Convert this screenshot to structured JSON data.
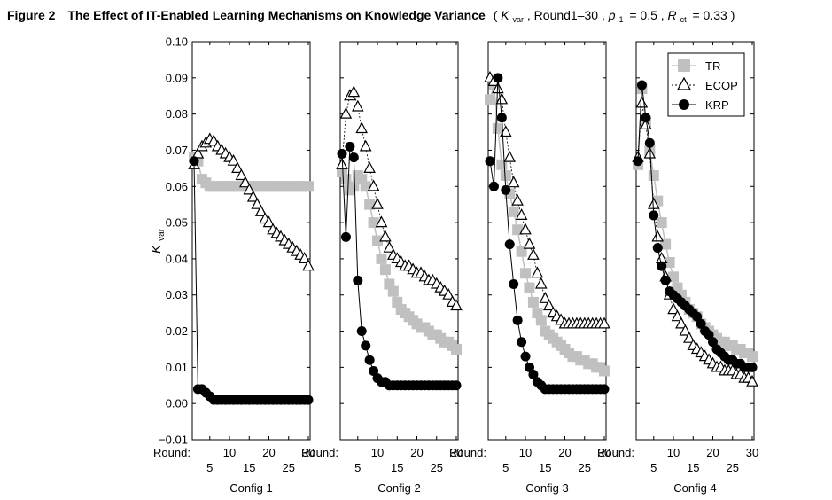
{
  "figure": {
    "label": "Figure 2",
    "title": "The Effect of IT-Enabled Learning Mechanisms on Knowledge Variance",
    "params": {
      "k_main": "K",
      "k_sub": "var",
      "rounds": "Round1–30",
      "p_main": "p",
      "p_sub": "1",
      "p_value": "= 0.5",
      "r_main": "R",
      "r_sub": "ct",
      "r_value": "= 0.33"
    }
  },
  "y_axis": {
    "label_main": "K",
    "label_sub": "var",
    "ticks": [
      "0.10",
      "0.09",
      "0.08",
      "0.07",
      "0.06",
      "0.05",
      "0.04",
      "0.03",
      "0.02",
      "0.01",
      "0.00",
      "−0.01"
    ]
  },
  "x_axis": {
    "round_label": "Round:",
    "top_ticks": [
      "10",
      "20",
      "30"
    ],
    "bottom_ticks": [
      "5",
      "15",
      "25"
    ]
  },
  "legend": {
    "placement": "top-right of Config 4 panel",
    "entries": [
      {
        "key": "tr",
        "label": "TR"
      },
      {
        "key": "ecop",
        "label": "ECOP"
      },
      {
        "key": "krp",
        "label": "KRP"
      }
    ]
  },
  "chart_data": {
    "type": "line",
    "layout": "four small-multiple panels sharing a y-axis",
    "xlabel": "Round",
    "ylabel": "K_var",
    "xlim": [
      1,
      30
    ],
    "ylim": [
      -0.01,
      0.1
    ],
    "x": [
      1,
      2,
      3,
      4,
      5,
      6,
      7,
      8,
      9,
      10,
      11,
      12,
      13,
      14,
      15,
      16,
      17,
      18,
      19,
      20,
      21,
      22,
      23,
      24,
      25,
      26,
      27,
      28,
      29,
      30
    ],
    "grid": false,
    "colors": {
      "TR": "#c0c0c0",
      "ECOP": "#000000",
      "KRP": "#000000"
    },
    "panels": [
      {
        "name": "Config 1",
        "series": [
          {
            "name": "TR",
            "values": [
              0.068,
              0.067,
              0.062,
              0.061,
              0.06,
              0.06,
              0.06,
              0.06,
              0.06,
              0.06,
              0.06,
              0.06,
              0.06,
              0.06,
              0.06,
              0.06,
              0.06,
              0.06,
              0.06,
              0.06,
              0.06,
              0.06,
              0.06,
              0.06,
              0.06,
              0.06,
              0.06,
              0.06,
              0.06,
              0.06
            ]
          },
          {
            "name": "ECOP",
            "values": [
              0.066,
              0.069,
              0.071,
              0.072,
              0.073,
              0.0725,
              0.071,
              0.07,
              0.069,
              0.068,
              0.067,
              0.065,
              0.063,
              0.061,
              0.059,
              0.057,
              0.055,
              0.053,
              0.051,
              0.05,
              0.048,
              0.047,
              0.046,
              0.045,
              0.044,
              0.043,
              0.042,
              0.041,
              0.04,
              0.038
            ]
          },
          {
            "name": "KRP",
            "values": [
              0.067,
              0.004,
              0.004,
              0.003,
              0.002,
              0.001,
              0.001,
              0.001,
              0.001,
              0.001,
              0.001,
              0.001,
              0.001,
              0.001,
              0.001,
              0.001,
              0.001,
              0.001,
              0.001,
              0.001,
              0.001,
              0.001,
              0.001,
              0.001,
              0.001,
              0.001,
              0.001,
              0.001,
              0.001,
              0.001
            ]
          }
        ]
      },
      {
        "name": "Config 2",
        "series": [
          {
            "name": "TR",
            "values": [
              0.064,
              0.062,
              0.059,
              0.06,
              0.063,
              0.062,
              0.06,
              0.055,
              0.05,
              0.045,
              0.04,
              0.037,
              0.033,
              0.031,
              0.028,
              0.026,
              0.025,
              0.024,
              0.023,
              0.022,
              0.021,
              0.021,
              0.02,
              0.019,
              0.019,
              0.018,
              0.017,
              0.017,
              0.016,
              0.015
            ]
          },
          {
            "name": "ECOP",
            "values": [
              0.066,
              0.08,
              0.085,
              0.086,
              0.082,
              0.076,
              0.071,
              0.065,
              0.06,
              0.055,
              0.05,
              0.046,
              0.043,
              0.041,
              0.04,
              0.039,
              0.038,
              0.038,
              0.037,
              0.036,
              0.036,
              0.035,
              0.034,
              0.034,
              0.033,
              0.032,
              0.031,
              0.03,
              0.028,
              0.027
            ]
          },
          {
            "name": "KRP",
            "values": [
              0.069,
              0.046,
              0.071,
              0.068,
              0.034,
              0.02,
              0.016,
              0.012,
              0.009,
              0.007,
              0.006,
              0.006,
              0.005,
              0.005,
              0.005,
              0.005,
              0.005,
              0.005,
              0.005,
              0.005,
              0.005,
              0.005,
              0.005,
              0.005,
              0.005,
              0.005,
              0.005,
              0.005,
              0.005,
              0.005
            ]
          }
        ]
      },
      {
        "name": "Config 3",
        "series": [
          {
            "name": "TR",
            "values": [
              0.084,
              0.088,
              0.076,
              0.066,
              0.063,
              0.058,
              0.053,
              0.048,
              0.042,
              0.036,
              0.032,
              0.028,
              0.025,
              0.023,
              0.02,
              0.019,
              0.018,
              0.017,
              0.016,
              0.015,
              0.014,
              0.013,
              0.013,
              0.012,
              0.012,
              0.011,
              0.011,
              0.01,
              0.01,
              0.009
            ]
          },
          {
            "name": "ECOP",
            "values": [
              0.09,
              0.089,
              0.087,
              0.084,
              0.075,
              0.068,
              0.061,
              0.056,
              0.052,
              0.048,
              0.044,
              0.041,
              0.036,
              0.033,
              0.029,
              0.027,
              0.025,
              0.024,
              0.023,
              0.022,
              0.022,
              0.022,
              0.022,
              0.022,
              0.022,
              0.022,
              0.022,
              0.022,
              0.022,
              0.022
            ]
          },
          {
            "name": "KRP",
            "values": [
              0.067,
              0.06,
              0.09,
              0.079,
              0.059,
              0.044,
              0.033,
              0.023,
              0.017,
              0.013,
              0.01,
              0.008,
              0.006,
              0.005,
              0.004,
              0.004,
              0.004,
              0.004,
              0.004,
              0.004,
              0.004,
              0.004,
              0.004,
              0.004,
              0.004,
              0.004,
              0.004,
              0.004,
              0.004,
              0.004
            ]
          }
        ]
      },
      {
        "name": "Config 4",
        "series": [
          {
            "name": "TR",
            "values": [
              0.066,
              0.087,
              0.078,
              0.07,
              0.063,
              0.056,
              0.05,
              0.044,
              0.039,
              0.035,
              0.032,
              0.03,
              0.028,
              0.026,
              0.025,
              0.024,
              0.022,
              0.021,
              0.02,
              0.019,
              0.018,
              0.017,
              0.017,
              0.016,
              0.016,
              0.015,
              0.015,
              0.014,
              0.014,
              0.013
            ]
          },
          {
            "name": "ECOP",
            "values": [
              0.068,
              0.083,
              0.077,
              0.069,
              0.055,
              0.046,
              0.04,
              0.035,
              0.03,
              0.026,
              0.024,
              0.022,
              0.02,
              0.018,
              0.016,
              0.015,
              0.014,
              0.013,
              0.012,
              0.011,
              0.01,
              0.01,
              0.009,
              0.009,
              0.009,
              0.008,
              0.008,
              0.007,
              0.007,
              0.006
            ]
          },
          {
            "name": "KRP",
            "values": [
              0.067,
              0.088,
              0.079,
              0.072,
              0.052,
              0.043,
              0.038,
              0.034,
              0.031,
              0.03,
              0.029,
              0.028,
              0.027,
              0.026,
              0.025,
              0.024,
              0.022,
              0.02,
              0.019,
              0.017,
              0.015,
              0.014,
              0.013,
              0.012,
              0.012,
              0.011,
              0.011,
              0.01,
              0.01,
              0.01
            ]
          }
        ]
      }
    ]
  }
}
